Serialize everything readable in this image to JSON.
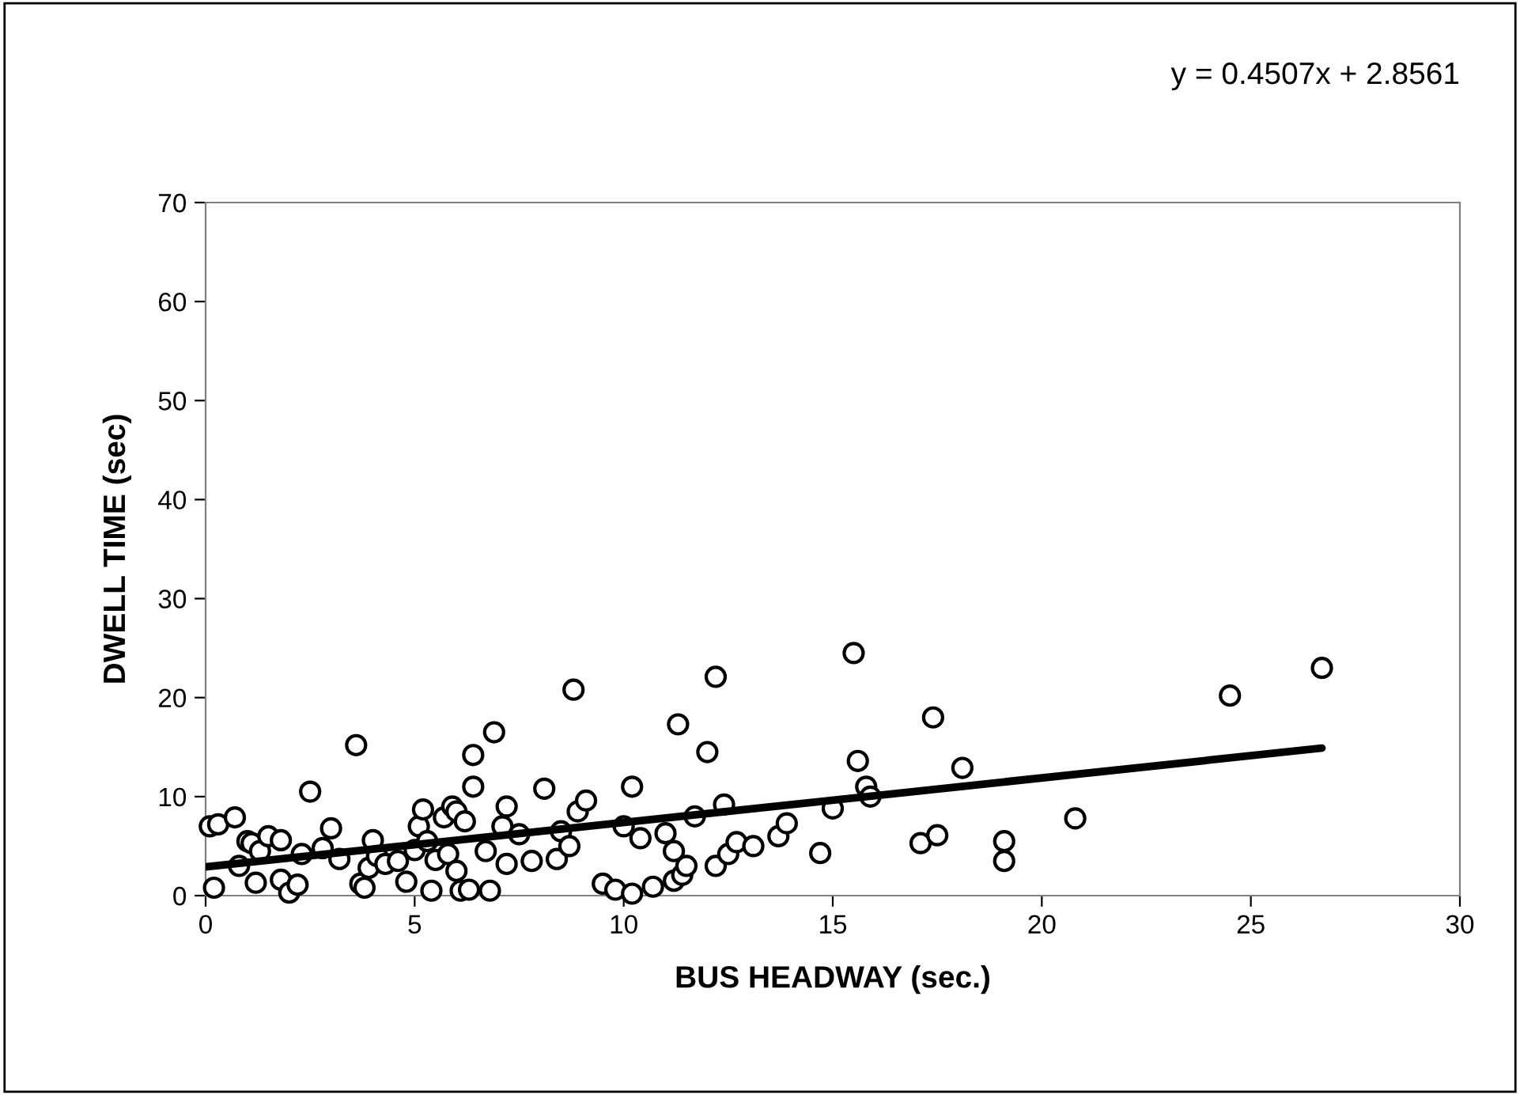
{
  "chart_data": {
    "type": "scatter",
    "xlabel": "BUS HEADWAY (sec.)",
    "ylabel": "DWELL TIME (sec)",
    "annotations": [
      "y = 0.4507x + 2.8561"
    ],
    "xlim": [
      0,
      30
    ],
    "ylim": [
      0,
      70
    ],
    "xticks": [
      0,
      5,
      10,
      15,
      20,
      25,
      30
    ],
    "yticks": [
      0,
      10,
      20,
      30,
      40,
      50,
      60,
      70
    ],
    "grid": false,
    "legend": false,
    "series": [
      {
        "marker": "circle",
        "color": "#000000",
        "x": [
          0.1,
          0.3,
          0.2,
          0.7,
          0.8,
          1.0,
          1.1,
          1.2,
          1.3,
          1.5,
          1.8,
          1.8,
          2.0,
          2.2,
          2.3,
          2.5,
          2.8,
          3.0,
          3.2,
          3.6,
          3.7,
          3.8,
          3.9,
          4.0,
          4.1,
          4.3,
          4.6,
          4.8,
          5.0,
          5.1,
          5.2,
          5.3,
          5.4,
          5.5,
          5.7,
          5.8,
          5.9,
          6.0,
          6.0,
          6.1,
          6.2,
          6.3,
          6.4,
          6.4,
          6.7,
          6.8,
          6.9,
          7.1,
          7.2,
          7.2,
          7.5,
          7.8,
          8.1,
          8.4,
          8.5,
          8.7,
          8.8,
          8.9,
          9.1,
          9.5,
          9.8,
          10.0,
          10.2,
          10.2,
          10.4,
          10.7,
          11.0,
          11.2,
          11.2,
          11.3,
          11.4,
          11.5,
          11.7,
          12.0,
          12.2,
          12.2,
          12.4,
          12.5,
          12.7,
          13.1,
          13.7,
          13.9,
          14.7,
          15.0,
          15.5,
          15.6,
          15.8,
          15.9,
          17.1,
          17.4,
          17.5,
          18.1,
          19.1,
          19.1,
          20.8,
          24.5,
          26.7
        ],
        "values": [
          7,
          7.2,
          0.8,
          7.9,
          3,
          5.5,
          5.3,
          1.3,
          4.5,
          6,
          5.6,
          1.6,
          0.3,
          1.1,
          4.2,
          10.5,
          4.8,
          6.8,
          3.7,
          15.2,
          1.2,
          0.8,
          2.8,
          5.6,
          4,
          3.2,
          3.5,
          1.4,
          4.6,
          7,
          8.7,
          5.5,
          0.5,
          3.6,
          7.9,
          4.2,
          9,
          8.5,
          2.5,
          0.5,
          7.5,
          0.6,
          11,
          14.2,
          4.5,
          0.5,
          16.5,
          7,
          9,
          3.2,
          6.2,
          3.5,
          10.8,
          3.7,
          6.5,
          5,
          20.8,
          8.5,
          9.6,
          1.2,
          0.6,
          7,
          11,
          0.2,
          5.8,
          0.9,
          6.3,
          4.5,
          1.5,
          17.3,
          2.1,
          3,
          8,
          14.5,
          22.1,
          3,
          9.2,
          4.2,
          5.4,
          5,
          6,
          7.3,
          4.3,
          8.8,
          24.5,
          13.6,
          11,
          10,
          5.3,
          18,
          6.1,
          12.9,
          5.5,
          3.5,
          7.8,
          20.2,
          23
        ]
      },
      {
        "type": "line",
        "marker": "none",
        "line_style": "solid",
        "color": "#000000",
        "x": [
          0,
          26.7
        ],
        "values": [
          2.9,
          14.9
        ]
      }
    ]
  }
}
